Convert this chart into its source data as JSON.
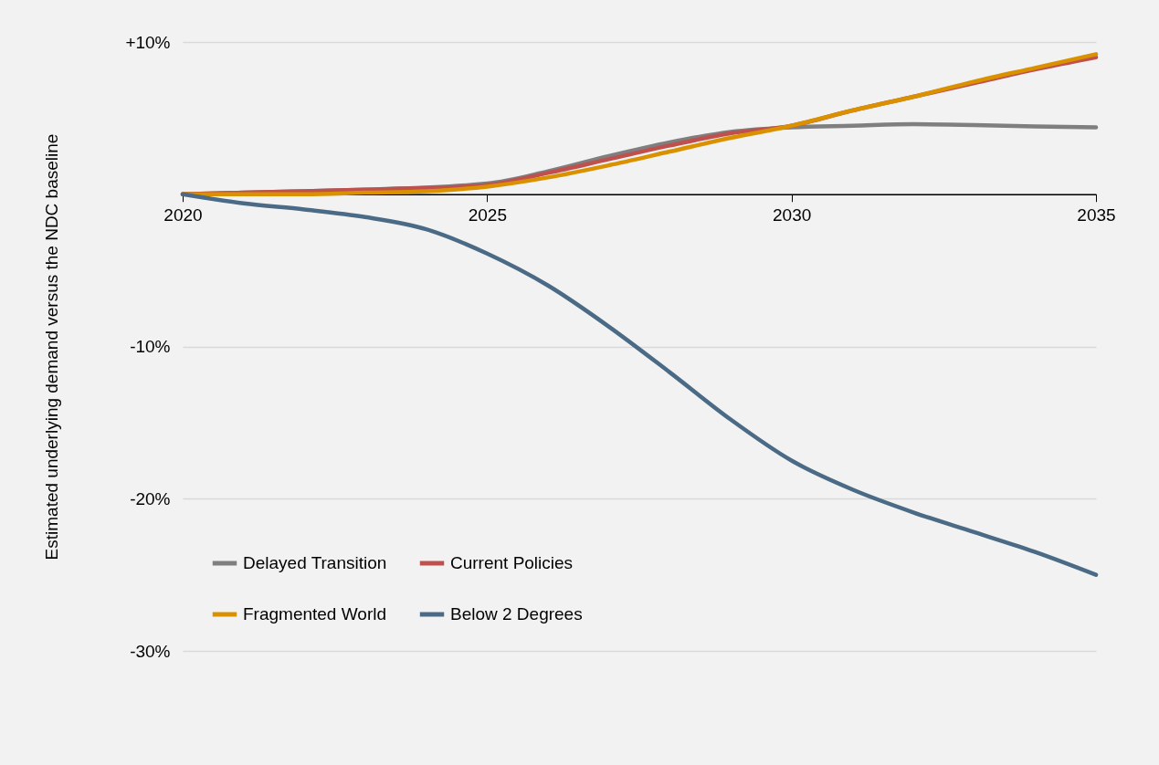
{
  "chart_data": {
    "type": "line",
    "ylabel": "Estimated underlying demand versus the NDC baseline",
    "x": [
      2020,
      2021,
      2022,
      2023,
      2024,
      2025,
      2026,
      2027,
      2028,
      2029,
      2030,
      2031,
      2032,
      2033,
      2034,
      2035
    ],
    "xlim": [
      2020,
      2035
    ],
    "xticks": [
      2020,
      2025,
      2030,
      2035
    ],
    "ylim": [
      -30,
      10
    ],
    "yticks": [
      {
        "value": 10,
        "label": "+10%"
      },
      {
        "value": 0,
        "label": null
      },
      {
        "value": -10,
        "label": "-10%"
      },
      {
        "value": -20,
        "label": "-20%"
      },
      {
        "value": -30,
        "label": "-30%"
      }
    ],
    "grid": "y",
    "legend": "bottom left",
    "line_style": "solid",
    "marker": "none",
    "series": [
      {
        "name": "Delayed Transition",
        "color": "#7f7f7f",
        "values": [
          0,
          null,
          0.2,
          0.3,
          null,
          0.7,
          1.5,
          2.5,
          3.4,
          4.1,
          4.4,
          4.5,
          4.6,
          4.55,
          4.45,
          4.4
        ]
      },
      {
        "name": "Current Policies",
        "color": "#c0504d",
        "values": [
          0,
          0.1,
          0.2,
          0.3,
          0.4,
          0.6,
          1.4,
          2.3,
          3.2,
          4.0,
          4.5,
          5.5,
          6.4,
          7.3,
          8.2,
          9.0
        ]
      },
      {
        "name": "Fragmented World",
        "color": "#d99100",
        "values": [
          0,
          0,
          0,
          0.1,
          0.2,
          0.5,
          1.1,
          1.9,
          2.8,
          3.7,
          4.5,
          5.5,
          6.4,
          7.4,
          8.3,
          9.2
        ]
      },
      {
        "name": "Below 2 Degrees",
        "color": "#4a6a85",
        "values": [
          0,
          -0.6,
          -1.0,
          -1.5,
          -2.3,
          -3.9,
          -6.0,
          -8.7,
          -11.7,
          -14.8,
          -17.5,
          -19.4,
          -20.9,
          -22.2,
          -23.5,
          -25.0
        ]
      }
    ]
  }
}
